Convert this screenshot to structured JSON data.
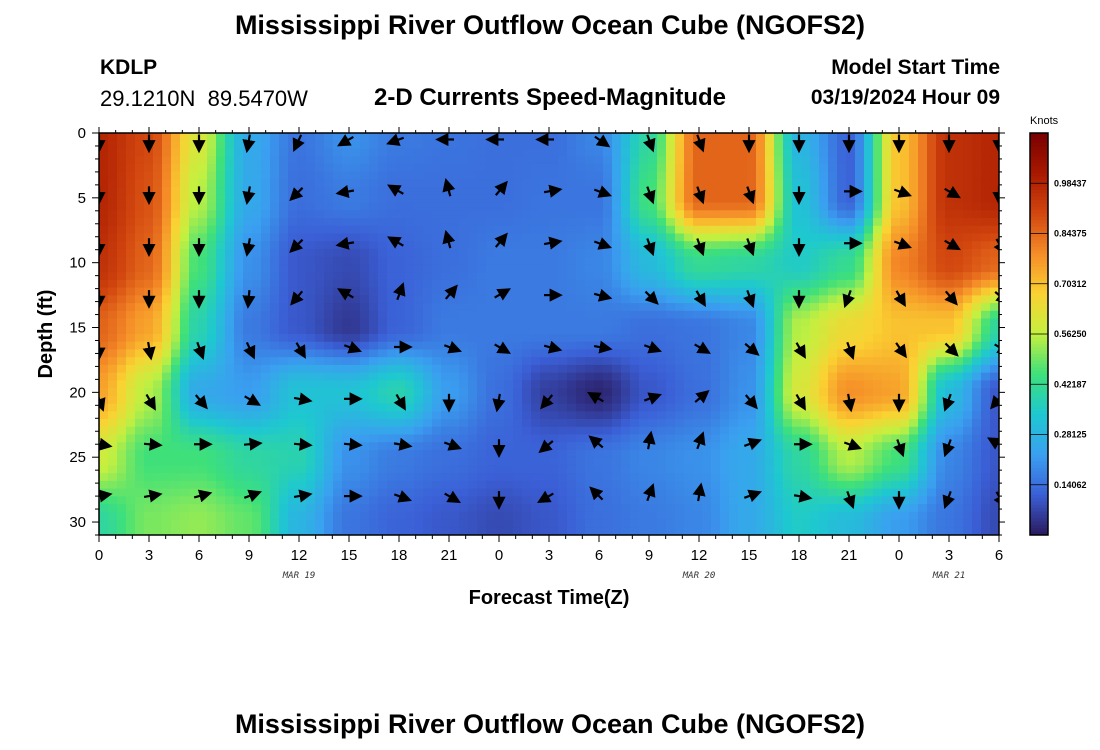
{
  "page": {
    "title": "Mississippi River Outflow Ocean Cube (NGOFS2)",
    "footer_title": "Mississippi River Outflow Ocean Cube (NGOFS2)",
    "station_id": "KDLP",
    "station_coords": "29.1210N  89.5470W",
    "subtitle": "2-D Currents Speed-Magnitude",
    "start_label": "Model Start Time",
    "start_value": "03/19/2024 Hour 09"
  },
  "colors": {
    "scale": [
      "#2a1a5e",
      "#3b5fd6",
      "#3aa0f0",
      "#1ec8d0",
      "#3ee07a",
      "#c4f040",
      "#fad232",
      "#f58c28",
      "#d2460f",
      "#a81800",
      "#780000"
    ]
  },
  "chart_data": {
    "type": "heatmap",
    "title": "2-D Currents Speed-Magnitude",
    "xlabel": "Forecast Time(Z)",
    "ylabel": "Depth (ft)",
    "x_tick_labels": [
      "0",
      "3",
      "6",
      "9",
      "12",
      "15",
      "18",
      "21",
      "0",
      "3",
      "6",
      "9",
      "12",
      "15",
      "18",
      "21",
      "0",
      "3",
      "6"
    ],
    "x_range_hours": [
      0,
      54
    ],
    "date_labels": [
      {
        "hour": 12,
        "label": "MAR 19"
      },
      {
        "hour": 36,
        "label": "MAR 20"
      },
      {
        "hour": 51,
        "label": "MAR 21"
      }
    ],
    "y_ticks": [
      0,
      5,
      10,
      15,
      20,
      25,
      30
    ],
    "ylim": [
      0,
      31
    ],
    "colorbar": {
      "unit": "Knots",
      "range": [
        0,
        1.125
      ],
      "ticks": [
        0.14062,
        0.28125,
        0.42187,
        0.5625,
        0.70312,
        0.84375,
        0.98437
      ],
      "tick_labels": [
        "0.14062",
        "0.28125",
        "0.42187",
        "0.56250",
        "0.70312",
        "0.84375",
        "0.98437"
      ]
    },
    "speed_field": {
      "x_hours": [
        0,
        3,
        6,
        9,
        12,
        15,
        18,
        21,
        24,
        27,
        30,
        33,
        36,
        39,
        42,
        45,
        48,
        51,
        54
      ],
      "depths_ft": [
        0,
        5,
        10,
        15,
        20,
        25,
        30
      ],
      "values_knots": [
        [
          0.98,
          0.9,
          0.6,
          0.25,
          0.15,
          0.2,
          0.16,
          0.15,
          0.14,
          0.14,
          0.18,
          0.4,
          0.85,
          0.85,
          0.28,
          0.12,
          0.7,
          0.95,
          0.98
        ],
        [
          0.98,
          0.88,
          0.55,
          0.25,
          0.14,
          0.16,
          0.14,
          0.14,
          0.14,
          0.15,
          0.15,
          0.45,
          0.85,
          0.85,
          0.32,
          0.12,
          0.7,
          0.95,
          0.98
        ],
        [
          0.95,
          0.85,
          0.45,
          0.2,
          0.1,
          0.08,
          0.12,
          0.14,
          0.16,
          0.16,
          0.18,
          0.3,
          0.42,
          0.4,
          0.35,
          0.42,
          0.8,
          0.9,
          0.85
        ],
        [
          0.85,
          0.75,
          0.38,
          0.16,
          0.1,
          0.05,
          0.12,
          0.16,
          0.16,
          0.16,
          0.16,
          0.14,
          0.15,
          0.18,
          0.55,
          0.65,
          0.7,
          0.7,
          0.4
        ],
        [
          0.75,
          0.55,
          0.25,
          0.22,
          0.32,
          0.32,
          0.38,
          0.22,
          0.14,
          0.06,
          0.02,
          0.1,
          0.14,
          0.2,
          0.6,
          0.78,
          0.75,
          0.3,
          0.1
        ],
        [
          0.58,
          0.45,
          0.45,
          0.4,
          0.38,
          0.2,
          0.16,
          0.14,
          0.12,
          0.12,
          0.15,
          0.18,
          0.2,
          0.25,
          0.4,
          0.55,
          0.45,
          0.18,
          0.1
        ],
        [
          0.4,
          0.5,
          0.52,
          0.48,
          0.28,
          0.15,
          0.12,
          0.1,
          0.08,
          0.1,
          0.14,
          0.16,
          0.18,
          0.25,
          0.35,
          0.3,
          0.22,
          0.15,
          0.08
        ]
      ]
    },
    "vector_field": {
      "x_hours": [
        0,
        3,
        6,
        9,
        12,
        15,
        18,
        21,
        24,
        27,
        30,
        33,
        36,
        39,
        42,
        45,
        48,
        51,
        54
      ],
      "depths_ft": [
        0.5,
        4.5,
        8.5,
        12.5,
        16.5,
        20.5,
        24,
        28
      ],
      "directions_deg": [
        [
          180,
          180,
          180,
          190,
          205,
          240,
          250,
          270,
          270,
          270,
          125,
          160,
          160,
          180,
          180,
          180,
          180,
          180,
          180
        ],
        [
          180,
          180,
          180,
          190,
          225,
          260,
          300,
          345,
          40,
          80,
          110,
          160,
          160,
          160,
          180,
          90,
          110,
          120,
          180
        ],
        [
          180,
          180,
          180,
          190,
          225,
          260,
          300,
          345,
          40,
          80,
          110,
          160,
          160,
          160,
          180,
          90,
          110,
          120,
          150
        ],
        [
          180,
          180,
          180,
          185,
          220,
          300,
          20,
          40,
          60,
          90,
          105,
          135,
          150,
          160,
          180,
          200,
          150,
          140,
          130
        ],
        [
          180,
          170,
          160,
          155,
          150,
          110,
          90,
          110,
          120,
          105,
          100,
          110,
          120,
          130,
          150,
          160,
          145,
          135,
          120
        ],
        [
          160,
          150,
          140,
          120,
          100,
          90,
          150,
          180,
          190,
          220,
          300,
          70,
          50,
          140,
          150,
          170,
          180,
          200,
          220
        ],
        [
          100,
          95,
          90,
          85,
          95,
          95,
          100,
          110,
          180,
          230,
          310,
          10,
          20,
          70,
          90,
          110,
          160,
          200,
          300
        ],
        [
          80,
          80,
          75,
          70,
          80,
          90,
          110,
          120,
          180,
          240,
          315,
          20,
          10,
          70,
          100,
          160,
          180,
          200,
          150
        ]
      ]
    }
  }
}
